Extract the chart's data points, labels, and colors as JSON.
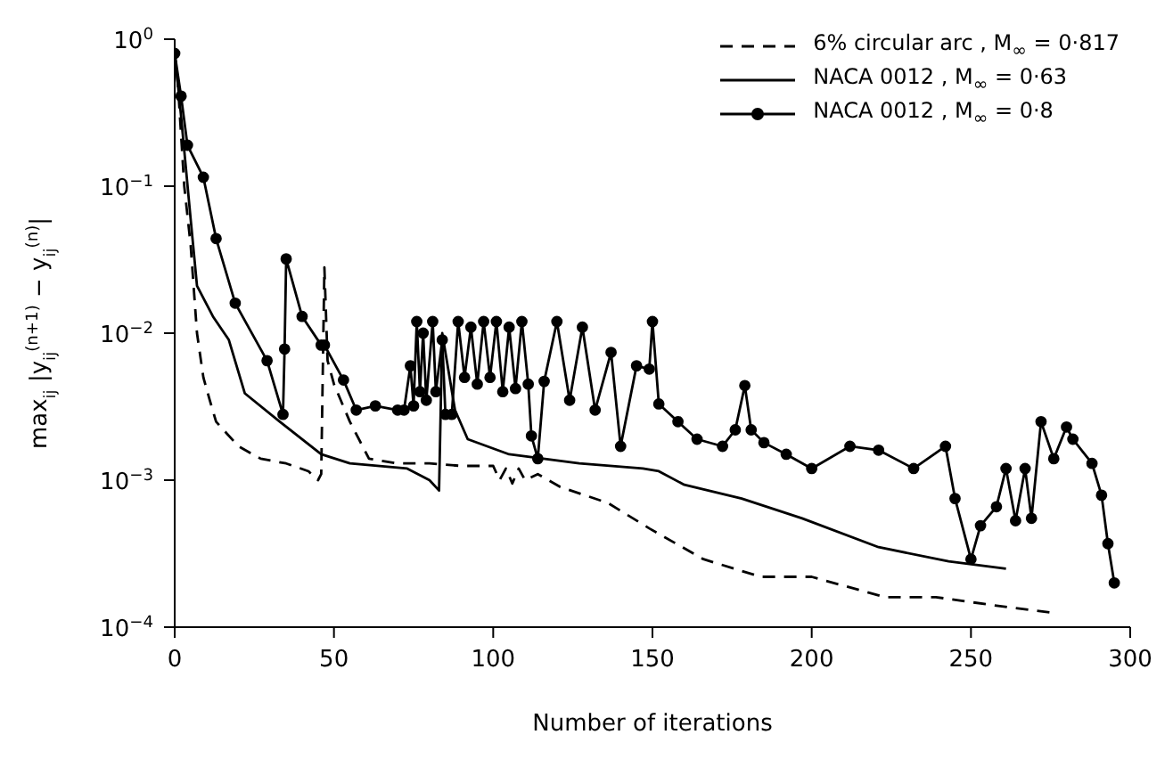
{
  "chart_data": {
    "type": "line",
    "xlabel": "Number of iterations",
    "ylabel": "max$_{ij}$ |y$_{ij}$$^{(n+1)}$ − y$_{ij}$$^{(n)}$|",
    "log": "y",
    "xlim": [
      0,
      300
    ],
    "xticks": [
      0,
      50,
      100,
      150,
      200,
      250,
      300
    ],
    "ylim": [
      0.0001,
      1
    ],
    "yticks": [
      {
        "value": 1,
        "label": "10$^{0}$"
      },
      {
        "value": 0.1,
        "label": "10$^{−1}$"
      },
      {
        "value": 0.01,
        "label": "10$^{−2}$"
      },
      {
        "value": 0.001,
        "label": "10$^{−3}$"
      },
      {
        "value": 0.0001,
        "label": "10$^{−4}$"
      }
    ],
    "grid": false,
    "legend": "top right",
    "series": [
      {
        "name": "6% circular arc , M$_{∞}$ = 0·817",
        "color": "#000000",
        "line_style": "dashed",
        "marker": "none",
        "x": [
          0,
          1,
          3,
          5,
          7,
          9,
          11,
          13,
          20,
          27,
          35,
          42,
          45,
          46,
          47,
          48,
          50,
          55,
          61,
          70,
          80,
          90,
          100,
          102,
          104,
          106,
          108,
          110,
          114,
          121,
          136,
          149,
          166,
          184,
          200,
          223,
          239,
          258,
          275
        ],
        "values": [
          0.8,
          0.5,
          0.1,
          0.04,
          0.01,
          0.005,
          0.0035,
          0.0025,
          0.0017,
          0.0014,
          0.0013,
          0.00115,
          0.001,
          0.0011,
          0.028,
          0.0065,
          0.0045,
          0.0025,
          0.0014,
          0.0013,
          0.0013,
          0.00125,
          0.00125,
          0.001,
          0.0012,
          0.00095,
          0.0012,
          0.001,
          0.0011,
          0.0009,
          0.0007,
          0.00047,
          0.00029,
          0.00022,
          0.00022,
          0.00016,
          0.00016,
          0.00014,
          0.000126
        ]
      },
      {
        "name": "NACA 0012 ,  M$_{∞}$ = 0·63",
        "color": "#000000",
        "line_style": "solid",
        "marker": "none",
        "x": [
          0,
          2,
          5,
          7,
          12,
          17,
          22,
          33,
          46,
          55,
          73,
          80,
          83,
          84,
          88,
          92,
          105,
          127,
          147,
          152,
          160,
          178,
          197,
          221,
          243,
          261
        ],
        "values": [
          0.8,
          0.3,
          0.06,
          0.021,
          0.013,
          0.009,
          0.0039,
          0.0025,
          0.0015,
          0.0013,
          0.0012,
          0.001,
          0.00085,
          0.01,
          0.003,
          0.0019,
          0.0015,
          0.0013,
          0.0012,
          0.00115,
          0.00093,
          0.00075,
          0.00055,
          0.00035,
          0.00028,
          0.00025
        ]
      },
      {
        "name": "NACA 0012 ,  M$_{∞}$ = 0·8",
        "color": "#000000",
        "line_style": "solid",
        "marker": "circle",
        "x": [
          0,
          2,
          4,
          9,
          13,
          19,
          29,
          34,
          34.5,
          35,
          40,
          46,
          47,
          53,
          57,
          63,
          70,
          72,
          74,
          75,
          76,
          77,
          78,
          79,
          81,
          82,
          84,
          85,
          87,
          89,
          91,
          93,
          95,
          97,
          99,
          101,
          103,
          105,
          107,
          109,
          111,
          112,
          114,
          116,
          120,
          124,
          128,
          132,
          137,
          140,
          145,
          149,
          150,
          152,
          158,
          164,
          172,
          176,
          179,
          181,
          185,
          192,
          200,
          212,
          221,
          232,
          242,
          245,
          250,
          253,
          258,
          261,
          264,
          267,
          269,
          272,
          276,
          280,
          282,
          288,
          291,
          293,
          295
        ],
        "values": [
          0.8,
          0.41,
          0.19,
          0.115,
          0.044,
          0.016,
          0.0065,
          0.0028,
          0.0078,
          0.032,
          0.013,
          0.0083,
          0.0083,
          0.0048,
          0.003,
          0.0032,
          0.003,
          0.003,
          0.006,
          0.0032,
          0.012,
          0.004,
          0.01,
          0.0035,
          0.012,
          0.004,
          0.009,
          0.0028,
          0.0028,
          0.012,
          0.005,
          0.011,
          0.0045,
          0.012,
          0.005,
          0.012,
          0.004,
          0.011,
          0.0042,
          0.012,
          0.0045,
          0.002,
          0.0014,
          0.0047,
          0.012,
          0.0035,
          0.011,
          0.003,
          0.0074,
          0.0017,
          0.006,
          0.0057,
          0.012,
          0.0033,
          0.0025,
          0.0019,
          0.0017,
          0.0022,
          0.0044,
          0.0022,
          0.0018,
          0.0015,
          0.0012,
          0.0017,
          0.0016,
          0.0012,
          0.0017,
          0.00075,
          0.00029,
          0.00049,
          0.00066,
          0.0012,
          0.00053,
          0.0012,
          0.00055,
          0.0025,
          0.0014,
          0.0023,
          0.0019,
          0.0013,
          0.00079,
          0.00037,
          0.0002
        ]
      }
    ]
  }
}
